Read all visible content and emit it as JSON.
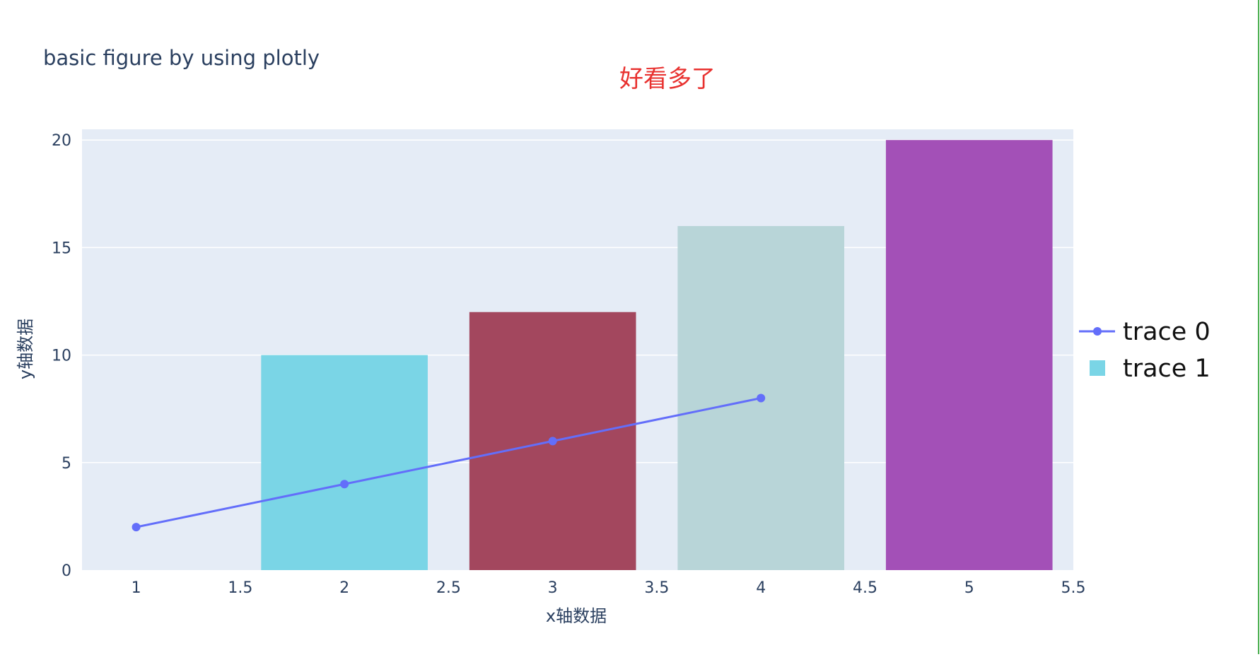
{
  "page": {
    "title": "basic figure by using plotly",
    "annotation": "好看多了",
    "annotation_color": "#e8312f",
    "edge_line_color": "#4caf50"
  },
  "chart_data": {
    "type": "bar",
    "xlabel": "x轴数据",
    "ylabel": "y轴数据",
    "xlim": [
      0.74,
      5.5
    ],
    "ylim": [
      0,
      20.5
    ],
    "x_ticks": [
      "1",
      "1.5",
      "2",
      "2.5",
      "3",
      "3.5",
      "4",
      "4.5",
      "5",
      "5.5"
    ],
    "y_ticks": [
      "0",
      "5",
      "10",
      "15",
      "20"
    ],
    "grid": true,
    "plot_bgcolor": "#e5ecf6",
    "grid_color": "#ffffff",
    "text_color": "#2a3f5f",
    "legend_position": "right",
    "bar_width": 0.8,
    "series": [
      {
        "name": "trace 0",
        "type": "line",
        "mode": "lines+markers",
        "x": [
          1,
          2,
          3,
          4
        ],
        "y": [
          2,
          4,
          6,
          8
        ],
        "color": "#636efa"
      },
      {
        "name": "trace 1",
        "type": "bar",
        "x": [
          2,
          3,
          4,
          5
        ],
        "y": [
          10,
          12,
          16,
          20
        ],
        "colors": [
          "#7ad5e6",
          "#a3475e",
          "#b8d5d8",
          "#a350b7"
        ],
        "legend_color": "#7ad5e6"
      }
    ]
  }
}
